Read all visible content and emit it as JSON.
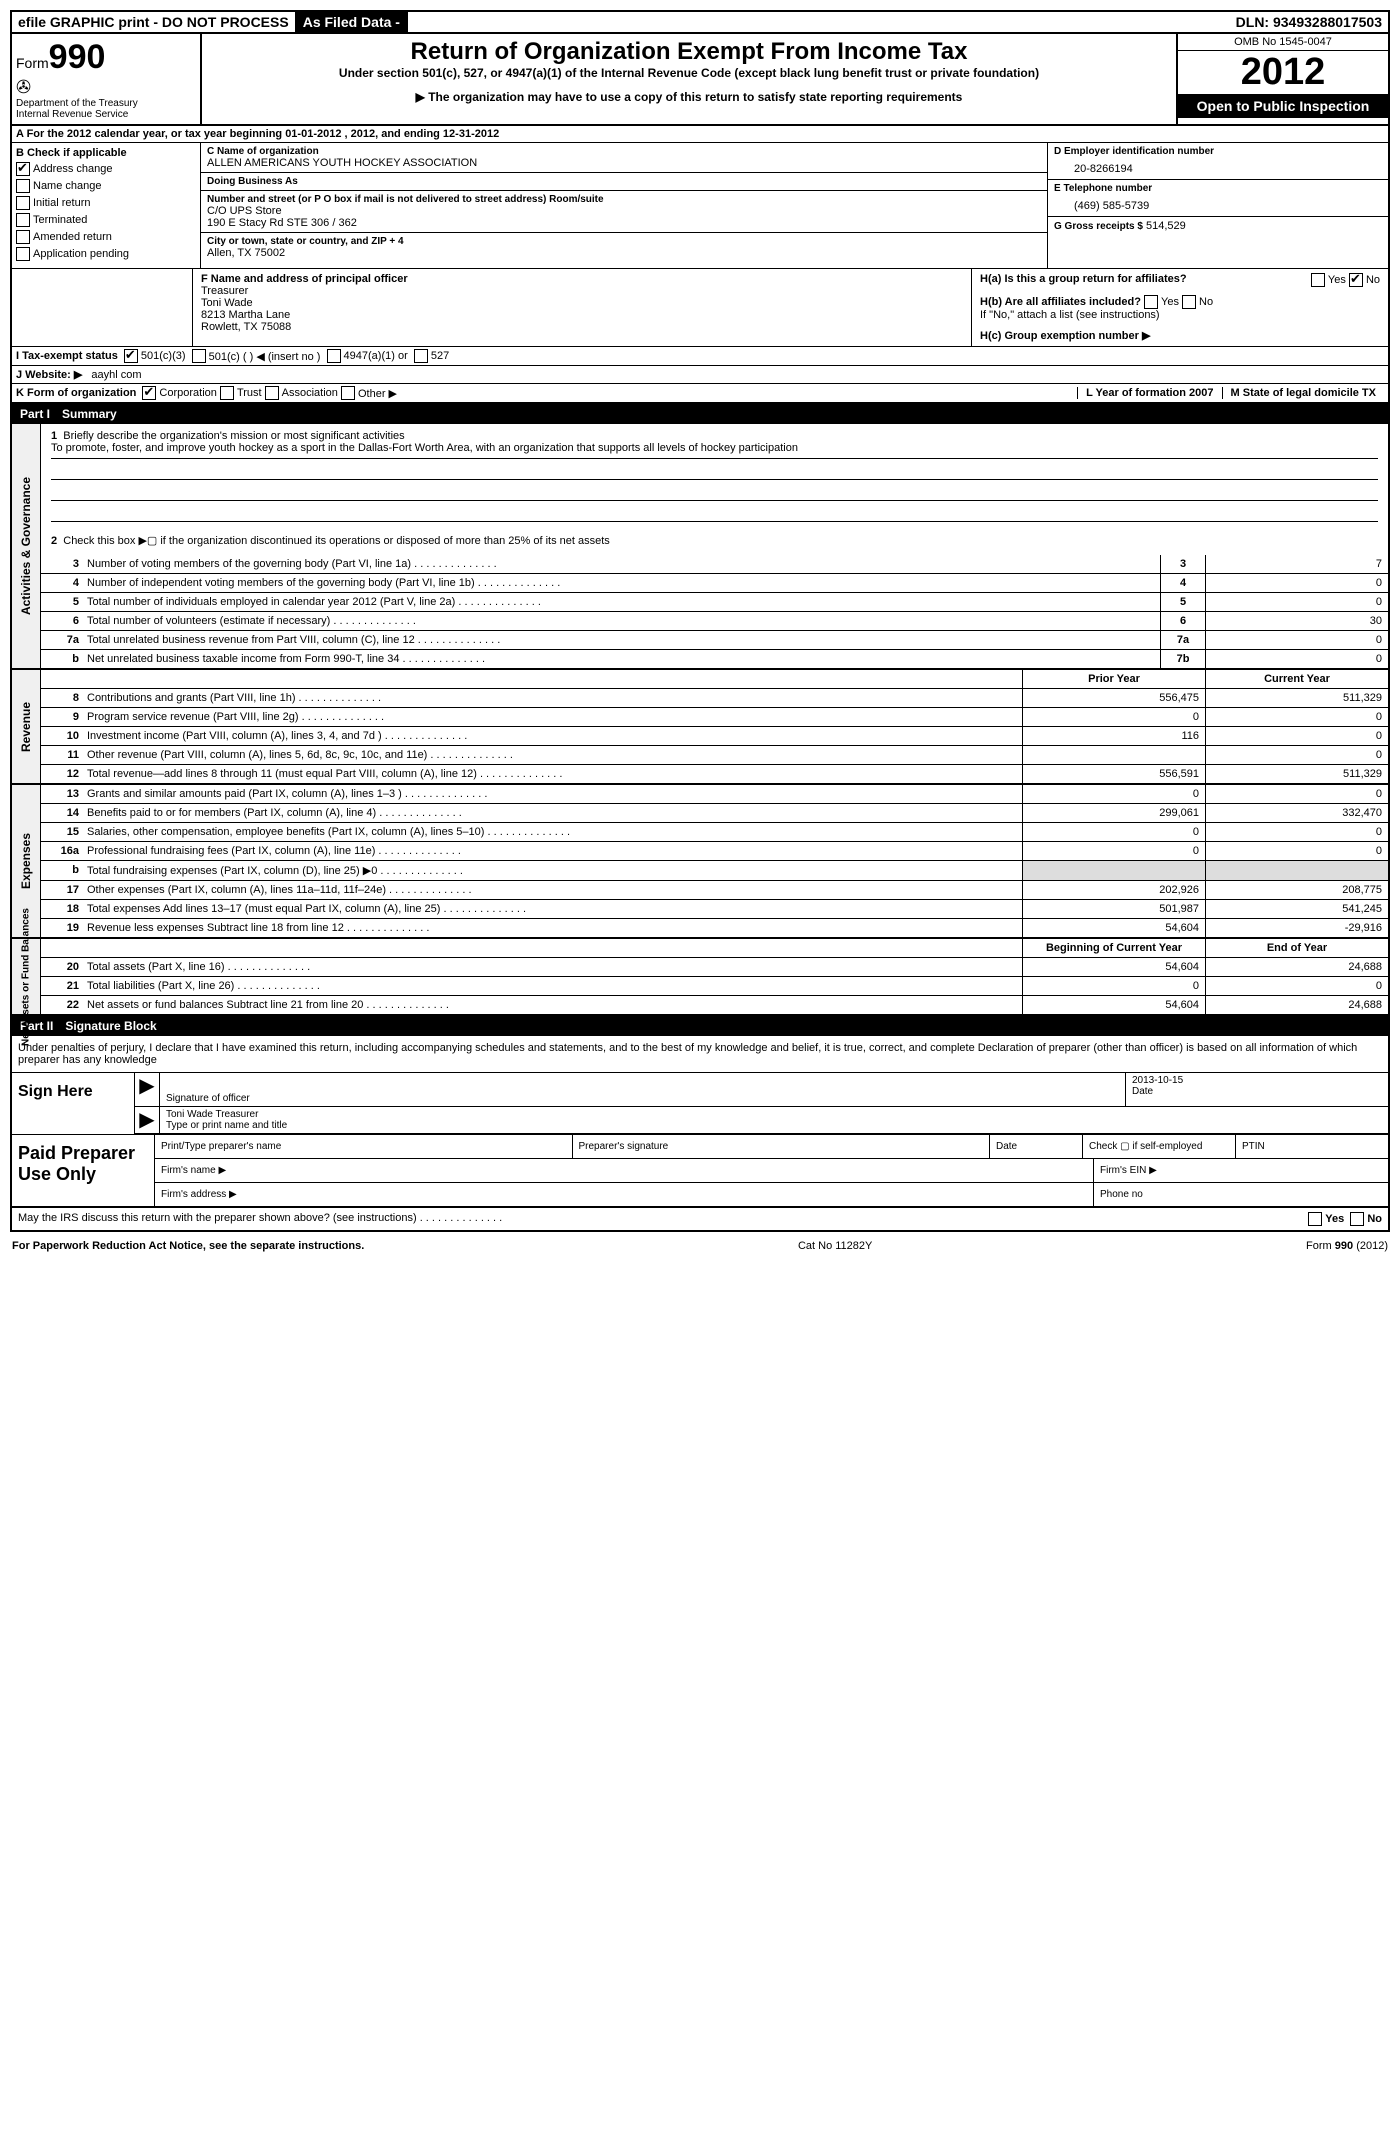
{
  "topbar": {
    "efile": "efile GRAPHIC print - DO NOT PROCESS",
    "asfiled": "As Filed Data -",
    "dln_label": "DLN:",
    "dln": "93493288017503"
  },
  "header": {
    "form_label": "Form",
    "form_num": "990",
    "dept1": "Department of the Treasury",
    "dept2": "Internal Revenue Service",
    "title": "Return of Organization Exempt From Income Tax",
    "sub1": "Under section 501(c), 527, or 4947(a)(1) of the Internal Revenue Code (except black lung benefit trust or private foundation)",
    "sub2": "▶ The organization may have to use a copy of this return to satisfy state reporting requirements",
    "omb": "OMB No 1545-0047",
    "year": "2012",
    "open": "Open to Public Inspection"
  },
  "rowA": "A  For the 2012 calendar year, or tax year beginning 01-01-2012     , 2012, and ending 12-31-2012",
  "colB": {
    "label": "B Check if applicable",
    "items": [
      "Address change",
      "Name change",
      "Initial return",
      "Terminated",
      "Amended return",
      "Application pending"
    ],
    "checked": [
      true,
      false,
      false,
      false,
      false,
      false
    ]
  },
  "colC": {
    "c_label": "C Name of organization",
    "name": "ALLEN AMERICANS YOUTH HOCKEY ASSOCIATION",
    "dba_label": "Doing Business As",
    "dba": "",
    "street_label": "Number and street (or P O  box if mail is not delivered to street address)  Room/suite",
    "street1": "C/O UPS Store",
    "street2": "190 E Stacy Rd STE 306 / 362",
    "city_label": "City or town, state or country, and ZIP + 4",
    "city": "Allen, TX  75002"
  },
  "colD": {
    "d_label": "D Employer identification number",
    "ein": "20-8266194",
    "e_label": "E Telephone number",
    "phone": "(469) 585-5739",
    "g_label": "G Gross receipts $",
    "gross": "514,529"
  },
  "fblock": {
    "f_label": "F  Name and address of principal officer",
    "title": "Treasurer",
    "name": "Toni Wade",
    "addr1": "8213 Martha Lane",
    "addr2": "Rowlett, TX  75088"
  },
  "hblock": {
    "ha": "H(a)  Is this a group return for affiliates?",
    "hb": "H(b)  Are all affiliates included?",
    "hb_note": "If \"No,\" attach a list  (see instructions)",
    "hc": "H(c)  Group exemption number ▶",
    "yes": "Yes",
    "no": "No"
  },
  "lineI": {
    "label": "I   Tax-exempt status",
    "opts": [
      "501(c)(3)",
      "501(c) (  ) ◀ (insert no )",
      "4947(a)(1) or",
      "527"
    ]
  },
  "lineJ": {
    "label": "J  Website: ▶",
    "val": "aayhl com"
  },
  "lineK": {
    "label": "K Form of organization",
    "opts": [
      "Corporation",
      "Trust",
      "Association",
      "Other ▶"
    ],
    "l_label": "L Year of formation  2007",
    "m_label": "M State of legal domicile  TX"
  },
  "part1": {
    "num": "Part I",
    "title": "Summary"
  },
  "gov": {
    "label": "Activities & Governance",
    "q1_label": "1",
    "q1": "Briefly describe the organization's mission or most significant activities",
    "q1_text": "To promote, foster, and improve youth hockey as a sport in the Dallas-Fort Worth Area, with an organization that supports all levels of hockey participation",
    "q2_label": "2",
    "q2": "Check this box ▶▢ if the organization discontinued its operations or disposed of more than 25% of its net assets",
    "rows": [
      {
        "n": "3",
        "d": "Number of voting members of the governing body (Part VI, line 1a)",
        "b": "3",
        "v": "7"
      },
      {
        "n": "4",
        "d": "Number of independent voting members of the governing body (Part VI, line 1b)",
        "b": "4",
        "v": "0"
      },
      {
        "n": "5",
        "d": "Total number of individuals employed in calendar year 2012 (Part V, line 2a)",
        "b": "5",
        "v": "0"
      },
      {
        "n": "6",
        "d": "Total number of volunteers (estimate if necessary)",
        "b": "6",
        "v": "30"
      },
      {
        "n": "7a",
        "d": "Total unrelated business revenue from Part VIII, column (C), line 12",
        "b": "7a",
        "v": "0"
      },
      {
        "n": "b",
        "d": "Net unrelated business taxable income from Form 990-T, line 34",
        "b": "7b",
        "v": "0"
      }
    ]
  },
  "revhead": {
    "py": "Prior Year",
    "cy": "Current Year"
  },
  "revenue": {
    "label": "Revenue",
    "rows": [
      {
        "n": "8",
        "d": "Contributions and grants (Part VIII, line 1h)",
        "py": "556,475",
        "cy": "511,329"
      },
      {
        "n": "9",
        "d": "Program service revenue (Part VIII, line 2g)",
        "py": "0",
        "cy": "0"
      },
      {
        "n": "10",
        "d": "Investment income (Part VIII, column (A), lines 3, 4, and 7d )",
        "py": "116",
        "cy": "0"
      },
      {
        "n": "11",
        "d": "Other revenue (Part VIII, column (A), lines 5, 6d, 8c, 9c, 10c, and 11e)",
        "py": "",
        "cy": "0"
      },
      {
        "n": "12",
        "d": "Total revenue—add lines 8 through 11 (must equal Part VIII, column (A), line 12)",
        "py": "556,591",
        "cy": "511,329"
      }
    ]
  },
  "expenses": {
    "label": "Expenses",
    "rows": [
      {
        "n": "13",
        "d": "Grants and similar amounts paid (Part IX, column (A), lines 1–3 )",
        "py": "0",
        "cy": "0"
      },
      {
        "n": "14",
        "d": "Benefits paid to or for members (Part IX, column (A), line 4)",
        "py": "299,061",
        "cy": "332,470"
      },
      {
        "n": "15",
        "d": "Salaries, other compensation, employee benefits (Part IX, column (A), lines 5–10)",
        "py": "0",
        "cy": "0"
      },
      {
        "n": "16a",
        "d": "Professional fundraising fees (Part IX, column (A), line 11e)",
        "py": "0",
        "cy": "0"
      },
      {
        "n": "b",
        "d": "Total fundraising expenses (Part IX, column (D), line 25)  ▶0",
        "py": "",
        "cy": ""
      },
      {
        "n": "17",
        "d": "Other expenses (Part IX, column (A), lines 11a–11d, 11f–24e)",
        "py": "202,926",
        "cy": "208,775"
      },
      {
        "n": "18",
        "d": "Total expenses  Add lines 13–17 (must equal Part IX, column (A), line 25)",
        "py": "501,987",
        "cy": "541,245"
      },
      {
        "n": "19",
        "d": "Revenue less expenses  Subtract line 18 from line 12",
        "py": "54,604",
        "cy": "-29,916"
      }
    ]
  },
  "nethead": {
    "b": "Beginning of Current Year",
    "e": "End of Year"
  },
  "net": {
    "label": "Net Assets or Fund Balances",
    "rows": [
      {
        "n": "20",
        "d": "Total assets (Part X, line 16)",
        "py": "54,604",
        "cy": "24,688"
      },
      {
        "n": "21",
        "d": "Total liabilities (Part X, line 26)",
        "py": "0",
        "cy": "0"
      },
      {
        "n": "22",
        "d": "Net assets or fund balances  Subtract line 21 from line 20",
        "py": "54,604",
        "cy": "24,688"
      }
    ]
  },
  "part2": {
    "num": "Part II",
    "title": "Signature Block"
  },
  "sig": {
    "decl": "Under penalties of perjury, I declare that I have examined this return, including accompanying schedules and statements, and to the best of my knowledge and belief, it is true, correct, and complete  Declaration of preparer (other than officer) is based on all information of which preparer has any knowledge",
    "sign_here": "Sign Here",
    "sig_officer": "Signature of officer",
    "date_label": "Date",
    "date": "2013-10-15",
    "name": "Toni Wade Treasurer",
    "name_label": "Type or print name and title"
  },
  "paid": {
    "label": "Paid Preparer Use Only",
    "h1": "Print/Type preparer's name",
    "h2": "Preparer's signature",
    "h3": "Date",
    "h4": "Check ▢ if self-employed",
    "h5": "PTIN",
    "firm_name": "Firm's name    ▶",
    "firm_ein": "Firm's EIN ▶",
    "firm_addr": "Firm's address ▶",
    "phone": "Phone no"
  },
  "discuss": {
    "text": "May the IRS discuss this return with the preparer shown above? (see instructions)",
    "yes": "Yes",
    "no": "No"
  },
  "footer": {
    "left": "For Paperwork Reduction Act Notice, see the separate instructions.",
    "mid": "Cat No  11282Y",
    "right": "Form 990 (2012)"
  }
}
